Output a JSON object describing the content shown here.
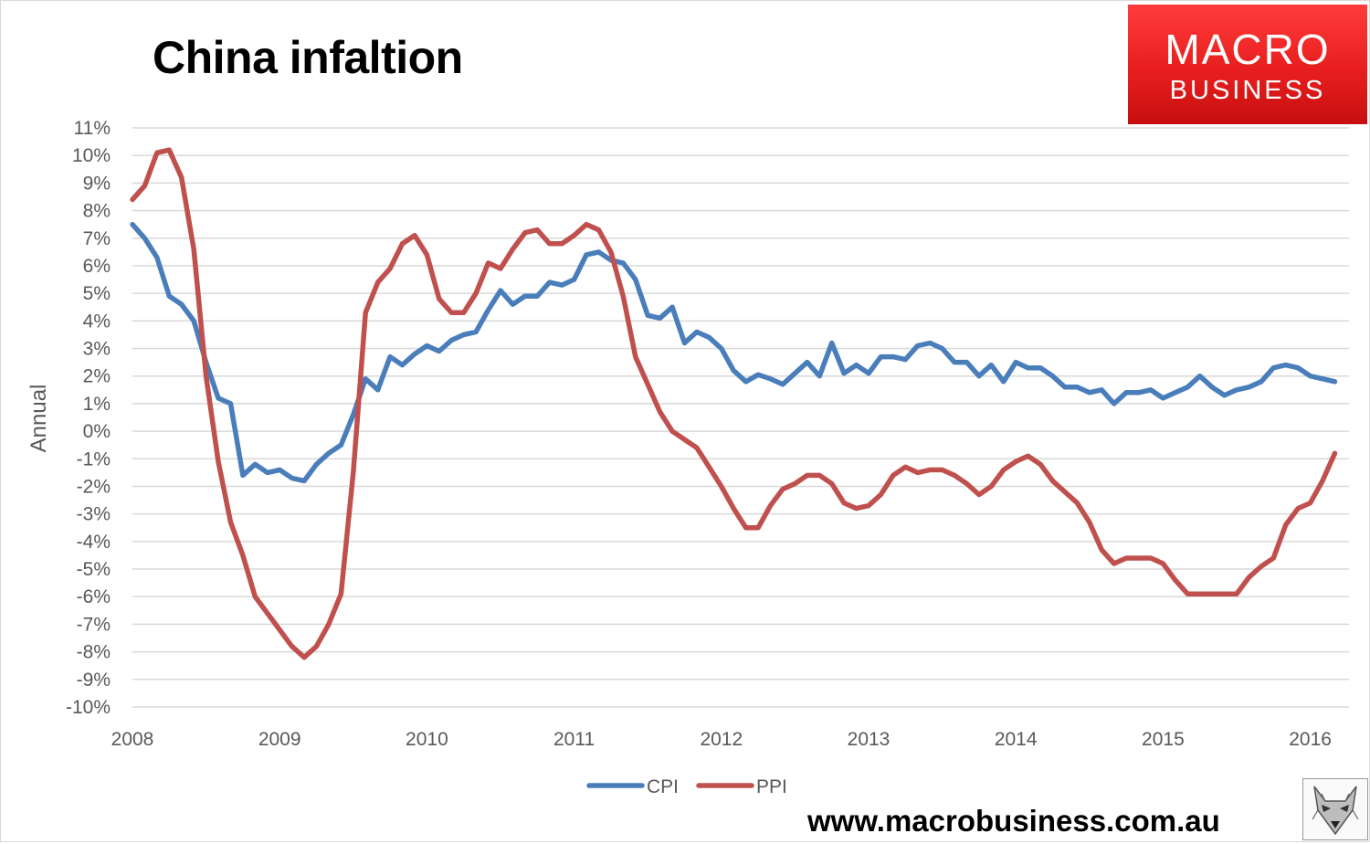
{
  "title": "China infaltion",
  "brand": {
    "line1": "MACRO",
    "line2": "BUSINESS",
    "color": "#e82222"
  },
  "website": "www.macrobusiness.com.au",
  "chart_data": {
    "type": "line",
    "title": "China infaltion",
    "ylabel": "Annual",
    "xlabel": "",
    "ylim": [
      -10,
      11
    ],
    "xlim": [
      2008,
      2016.3
    ],
    "y_ticks": [
      "11%",
      "10%",
      "9%",
      "8%",
      "7%",
      "6%",
      "5%",
      "4%",
      "3%",
      "2%",
      "1%",
      "0%",
      "-1%",
      "-2%",
      "-3%",
      "-4%",
      "-5%",
      "-6%",
      "-7%",
      "-8%",
      "-9%",
      "-10%"
    ],
    "x_ticks": [
      "2008",
      "2009",
      "2010",
      "2011",
      "2012",
      "2013",
      "2014",
      "2015",
      "2016"
    ],
    "grid": "horizontal",
    "legend": "bottom-center",
    "series": [
      {
        "name": "CPI",
        "color": "#4a7ebb",
        "x": [
          2008.0,
          2008.083,
          2008.167,
          2008.25,
          2008.333,
          2008.417,
          2008.5,
          2008.583,
          2008.667,
          2008.75,
          2008.833,
          2008.917,
          2009.0,
          2009.083,
          2009.167,
          2009.25,
          2009.333,
          2009.417,
          2009.5,
          2009.583,
          2009.667,
          2009.75,
          2009.833,
          2009.917,
          2010.0,
          2010.083,
          2010.167,
          2010.25,
          2010.333,
          2010.417,
          2010.5,
          2010.583,
          2010.667,
          2010.75,
          2010.833,
          2010.917,
          2011.0,
          2011.083,
          2011.167,
          2011.25,
          2011.333,
          2011.417,
          2011.5,
          2011.583,
          2011.667,
          2011.75,
          2011.833,
          2011.917,
          2012.0,
          2012.083,
          2012.167,
          2012.25,
          2012.333,
          2012.417,
          2012.5,
          2012.583,
          2012.667,
          2012.75,
          2012.833,
          2012.917,
          2013.0,
          2013.083,
          2013.167,
          2013.25,
          2013.333,
          2013.417,
          2013.5,
          2013.583,
          2013.667,
          2013.75,
          2013.833,
          2013.917,
          2014.0,
          2014.083,
          2014.167,
          2014.25,
          2014.333,
          2014.417,
          2014.5,
          2014.583,
          2014.667,
          2014.75,
          2014.833,
          2014.917,
          2015.0,
          2015.083,
          2015.167,
          2015.25,
          2015.333,
          2015.417,
          2015.5,
          2015.583,
          2015.667,
          2015.75,
          2015.833,
          2015.917,
          2016.0,
          2016.083,
          2016.167
        ],
        "values": [
          7.5,
          7.0,
          6.3,
          4.9,
          4.6,
          4.0,
          2.5,
          1.2,
          1.0,
          -1.6,
          -1.2,
          -1.5,
          -1.4,
          -1.7,
          -1.8,
          -1.2,
          -0.8,
          -0.5,
          0.6,
          1.9,
          1.5,
          2.7,
          2.4,
          2.8,
          3.1,
          2.9,
          3.3,
          3.5,
          3.6,
          4.4,
          5.1,
          4.6,
          4.9,
          4.9,
          5.4,
          5.3,
          5.5,
          6.4,
          6.5,
          6.2,
          6.1,
          5.5,
          4.2,
          4.1,
          4.5,
          3.2,
          3.6,
          3.4,
          3.0,
          2.2,
          1.8,
          2.05,
          1.9,
          1.7,
          2.1,
          2.5,
          2.0,
          3.2,
          2.1,
          2.4,
          2.1,
          2.7,
          2.7,
          2.6,
          3.1,
          3.2,
          3.0,
          2.5,
          2.5,
          2.0,
          2.4,
          1.8,
          2.5,
          2.3,
          2.3,
          2.0,
          1.6,
          1.6,
          1.4,
          1.5,
          1.0,
          1.4,
          1.4,
          1.5,
          1.2,
          1.4,
          1.6,
          2.0,
          1.6,
          1.3,
          1.5,
          1.6,
          1.8,
          2.3,
          2.4,
          2.3,
          2.0,
          1.9,
          1.8
        ]
      },
      {
        "name": "PPI",
        "color": "#c0504d",
        "x": [
          2008.0,
          2008.083,
          2008.167,
          2008.25,
          2008.333,
          2008.417,
          2008.5,
          2008.583,
          2008.667,
          2008.75,
          2008.833,
          2008.917,
          2009.0,
          2009.083,
          2009.167,
          2009.25,
          2009.333,
          2009.417,
          2009.5,
          2009.583,
          2009.667,
          2009.75,
          2009.833,
          2009.917,
          2010.0,
          2010.083,
          2010.167,
          2010.25,
          2010.333,
          2010.417,
          2010.5,
          2010.583,
          2010.667,
          2010.75,
          2010.833,
          2010.917,
          2011.0,
          2011.083,
          2011.167,
          2011.25,
          2011.333,
          2011.417,
          2011.5,
          2011.583,
          2011.667,
          2011.75,
          2011.833,
          2011.917,
          2012.0,
          2012.083,
          2012.167,
          2012.25,
          2012.333,
          2012.417,
          2012.5,
          2012.583,
          2012.667,
          2012.75,
          2012.833,
          2012.917,
          2013.0,
          2013.083,
          2013.167,
          2013.25,
          2013.333,
          2013.417,
          2013.5,
          2013.583,
          2013.667,
          2013.75,
          2013.833,
          2013.917,
          2014.0,
          2014.083,
          2014.167,
          2014.25,
          2014.333,
          2014.417,
          2014.5,
          2014.583,
          2014.667,
          2014.75,
          2014.833,
          2014.917,
          2015.0,
          2015.083,
          2015.167,
          2015.25,
          2015.333,
          2015.417,
          2015.5,
          2015.583,
          2015.667,
          2015.75,
          2015.833,
          2015.917,
          2016.0,
          2016.083,
          2016.167
        ],
        "values": [
          8.4,
          8.9,
          10.1,
          10.2,
          9.2,
          6.6,
          2.0,
          -1.1,
          -3.3,
          -4.5,
          -6.0,
          -6.6,
          -7.2,
          -7.8,
          -8.2,
          -7.8,
          -7.0,
          -5.9,
          -1.5,
          4.3,
          5.4,
          5.9,
          6.8,
          7.1,
          6.4,
          4.8,
          4.3,
          4.3,
          5.0,
          6.1,
          5.9,
          6.6,
          7.2,
          7.3,
          6.8,
          6.8,
          7.1,
          7.5,
          7.3,
          6.5,
          4.9,
          2.7,
          1.7,
          0.7,
          0.0,
          -0.3,
          -0.6,
          -1.3,
          -2.0,
          -2.8,
          -3.5,
          -3.5,
          -2.7,
          -2.1,
          -1.9,
          -1.6,
          -1.6,
          -1.9,
          -2.6,
          -2.8,
          -2.7,
          -2.3,
          -1.6,
          -1.3,
          -1.5,
          -1.4,
          -1.4,
          -1.6,
          -1.9,
          -2.3,
          -2.0,
          -1.4,
          -1.1,
          -0.9,
          -1.2,
          -1.8,
          -2.2,
          -2.6,
          -3.3,
          -4.3,
          -4.8,
          -4.6,
          -4.6,
          -4.6,
          -4.8,
          -5.4,
          -5.9,
          -5.9,
          -5.9,
          -5.9,
          -5.9,
          -5.3,
          -4.9,
          -4.6,
          -3.4,
          -2.8,
          -2.6,
          -1.8,
          -0.8
        ]
      }
    ]
  }
}
